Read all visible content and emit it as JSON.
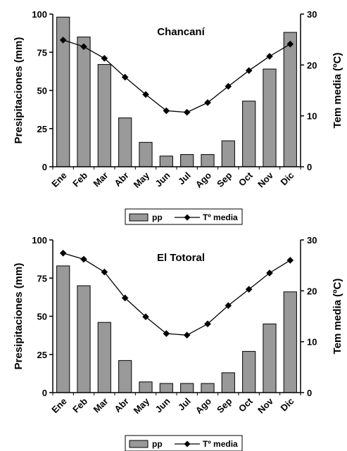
{
  "legend": {
    "bar_label": "pp",
    "line_label": "Tº media"
  },
  "colors": {
    "bar_fill": "#999999",
    "bar_stroke": "#000000",
    "line": "#000000",
    "marker": "#000000"
  },
  "chart_data": [
    {
      "type": "bar",
      "title": "Chancaní",
      "categories": [
        "Ene",
        "Feb",
        "Mar",
        "Abr",
        "May",
        "Jun",
        "Jul",
        "Ago",
        "Sep",
        "Oct",
        "Nov",
        "Dic"
      ],
      "ylabel": "Presipitaciones (mm)",
      "y2label": "Tem media (ºC)",
      "ylim": [
        0,
        100
      ],
      "y2lim": [
        0,
        30
      ],
      "yticks": [
        "0",
        "25",
        "50",
        "75",
        "100"
      ],
      "y2ticks": [
        "0",
        "10",
        "20",
        "30"
      ],
      "legend_position": "bottom",
      "grid": false,
      "series": [
        {
          "name": "pp",
          "type": "bar",
          "axis": "left",
          "values": [
            98,
            85,
            67,
            32,
            16,
            7,
            8,
            8,
            17,
            43,
            64,
            88
          ]
        },
        {
          "name": "Tº media",
          "type": "line",
          "axis": "right",
          "marker": "diamond",
          "values": [
            24.9,
            23.6,
            21.3,
            17.6,
            14.2,
            11.0,
            10.7,
            12.6,
            15.8,
            18.9,
            21.7,
            24.1
          ]
        }
      ]
    },
    {
      "type": "bar",
      "title": "El Totoral",
      "categories": [
        "Ene",
        "Feb",
        "Mar",
        "Abr",
        "May",
        "Jun",
        "Jul",
        "Ago",
        "Sep",
        "Oct",
        "Nov",
        "Dic"
      ],
      "ylabel": "Presipitaciones (mm)",
      "y2label": "Tem media (ºC)",
      "ylim": [
        0,
        100
      ],
      "y2lim": [
        0,
        30
      ],
      "yticks": [
        "0",
        "25",
        "50",
        "75",
        "100"
      ],
      "y2ticks": [
        "0",
        "10",
        "20",
        "30"
      ],
      "legend_position": "bottom",
      "grid": false,
      "series": [
        {
          "name": "pp",
          "type": "bar",
          "axis": "left",
          "values": [
            83,
            70,
            46,
            21,
            7,
            6,
            6,
            6,
            13,
            27,
            45,
            66
          ]
        },
        {
          "name": "Tº media",
          "type": "line",
          "axis": "right",
          "marker": "diamond",
          "values": [
            27.4,
            26.2,
            23.7,
            18.6,
            14.9,
            11.6,
            11.3,
            13.5,
            17.1,
            20.3,
            23.5,
            26.0
          ]
        }
      ]
    }
  ]
}
